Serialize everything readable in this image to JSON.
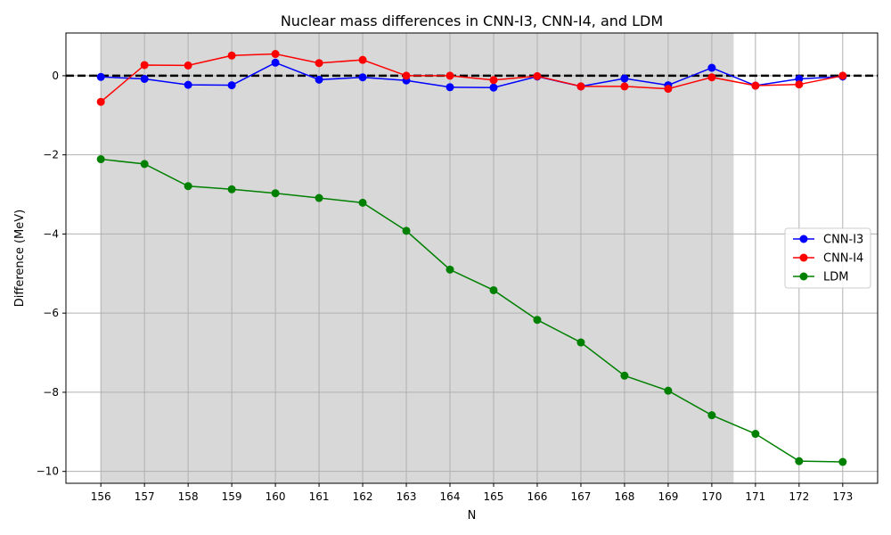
{
  "chart_data": {
    "type": "line",
    "title": "Nuclear mass differences in CNN-I3, CNN-I4, and LDM",
    "xlabel": "N",
    "ylabel": "Difference (MeV)",
    "x": [
      156,
      157,
      158,
      159,
      160,
      161,
      162,
      163,
      164,
      165,
      166,
      167,
      168,
      169,
      170,
      171,
      172,
      173
    ],
    "xlim": [
      155.2,
      173.8
    ],
    "ylim": [
      -10.3,
      1.08
    ],
    "yticks": [
      0,
      -2,
      -4,
      -6,
      -8,
      -10
    ],
    "yticklabels": [
      "0",
      "−2",
      "−4",
      "−6",
      "−8",
      "−10"
    ],
    "grid": true,
    "shaded_region": {
      "x_start": 156,
      "x_end": 170.5,
      "color": "#d8d8d8"
    },
    "reference_line": {
      "y": 0,
      "style": "dashed",
      "color": "#000000"
    },
    "legend_position": "center-right",
    "series": [
      {
        "name": "CNN-I3",
        "color": "#0000ff",
        "values": [
          -0.03,
          -0.08,
          -0.23,
          -0.24,
          0.33,
          -0.1,
          -0.04,
          -0.12,
          -0.29,
          -0.3,
          -0.02,
          -0.27,
          -0.07,
          -0.24,
          0.2,
          -0.25,
          -0.08,
          -0.02
        ]
      },
      {
        "name": "CNN-I4",
        "color": "#ff0000",
        "values": [
          -0.66,
          0.27,
          0.26,
          0.51,
          0.55,
          0.32,
          0.4,
          0.0,
          0.0,
          -0.11,
          -0.01,
          -0.27,
          -0.27,
          -0.33,
          -0.04,
          -0.25,
          -0.22,
          0.0
        ]
      },
      {
        "name": "LDM",
        "color": "#008000",
        "values": [
          -2.11,
          -2.23,
          -2.79,
          -2.87,
          -2.97,
          -3.09,
          -3.21,
          -3.92,
          -4.9,
          -5.42,
          -6.17,
          -6.74,
          -7.58,
          -7.96,
          -8.58,
          -9.05,
          -9.74,
          -9.76
        ]
      }
    ]
  }
}
